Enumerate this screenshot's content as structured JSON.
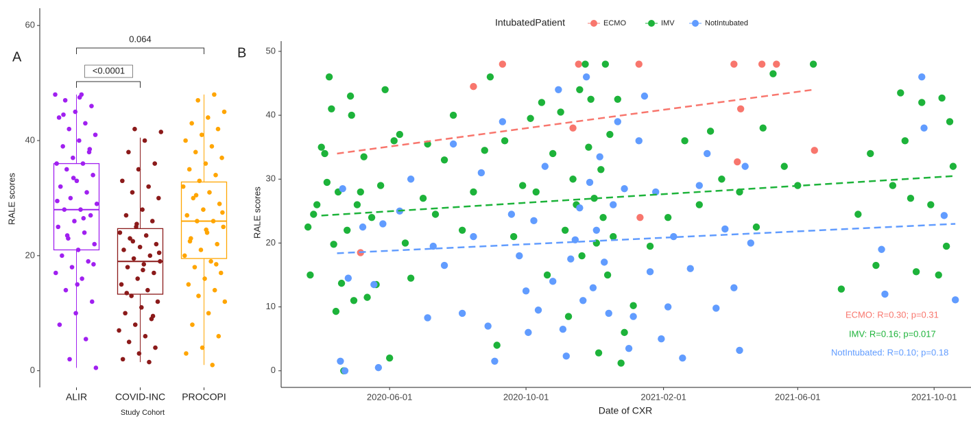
{
  "chart_data": [
    {
      "type": "box",
      "panel": "A",
      "xlabel": "Study Cohort",
      "ylabel": "RALE scores",
      "categories": [
        "ALIR",
        "COVID-INC",
        "PROCOPI"
      ],
      "colors": [
        "#a020f0",
        "#8b1a1a",
        "#ffa500"
      ],
      "boxes": [
        {
          "min": 0.5,
          "q1": 21,
          "median": 28,
          "q3": 36,
          "max": 48
        },
        {
          "min": 1.5,
          "q1": 13.3,
          "median": 19,
          "q3": 24.7,
          "max": 40.5
        },
        {
          "min": 1,
          "q1": 19.5,
          "median": 26,
          "q3": 32.8,
          "max": 48
        }
      ],
      "values": [
        [
          48,
          48,
          47,
          46,
          45,
          44,
          43,
          42,
          41,
          40,
          39,
          38,
          37,
          36,
          36,
          35,
          34,
          33,
          32,
          31,
          30,
          29,
          28,
          28,
          27,
          26,
          25,
          24,
          23,
          22,
          21,
          20,
          19,
          18,
          17,
          16,
          14,
          12,
          10,
          8,
          5.5,
          2,
          0.5,
          47.5,
          44.5,
          38.5,
          33.5,
          29.5,
          26.5,
          23.5,
          18.5,
          15
        ],
        [
          42,
          41.5,
          40,
          38,
          36,
          35,
          33,
          32,
          31,
          30,
          28,
          27,
          26,
          25,
          24,
          23.5,
          23,
          22,
          21.5,
          21,
          20,
          19.5,
          19,
          18.5,
          18,
          17,
          16,
          15,
          14,
          13,
          12,
          11,
          10,
          9,
          8,
          7,
          6,
          5,
          4,
          3,
          2,
          1.5,
          22.5,
          20.5,
          17.5,
          13.5,
          9.5,
          25.5
        ],
        [
          48,
          47,
          45,
          44,
          43,
          42,
          41,
          40,
          39,
          38,
          37,
          36,
          35,
          34,
          33,
          32,
          31,
          30,
          29,
          28,
          27,
          26,
          26,
          25,
          24,
          23,
          22,
          21,
          20,
          19,
          18,
          17,
          16,
          15,
          14,
          13,
          12,
          10,
          8,
          6,
          4,
          3,
          1,
          30.5,
          27.5,
          24.5,
          22.5,
          18.5
        ]
      ],
      "comparisons": [
        {
          "label": "<0.0001",
          "groups": [
            "ALIR",
            "COVID-INC"
          ]
        },
        {
          "label": "0.064",
          "groups": [
            "ALIR",
            "PROCOPI"
          ]
        }
      ],
      "ylim": [
        -2.9,
        63
      ],
      "yticks": [
        0,
        20,
        40,
        60
      ]
    },
    {
      "type": "scatter",
      "panel": "B",
      "xlabel": "Date of CXR",
      "ylabel": "RALE scores",
      "legend_title": "IntubatedPatient",
      "legend": "top",
      "xlim": [
        "2020-02-25",
        "2021-11-03"
      ],
      "xticks": [
        "2020-06-01",
        "2020-10-01",
        "2021-02-01",
        "2021-06-01",
        "2021-10-01"
      ],
      "ylim": [
        -2.6,
        51.6
      ],
      "yticks": [
        0,
        10,
        20,
        30,
        40,
        50
      ],
      "series": [
        {
          "name": "ECMO",
          "color": "#f8766d",
          "annotation": "ECMO: R=0.30; p=0.31",
          "x": [
            "2020-05-06",
            "2020-08-15",
            "2020-09-10",
            "2020-11-12",
            "2020-11-17",
            "2021-01-10",
            "2021-01-11",
            "2021-04-05",
            "2021-04-08",
            "2021-04-11",
            "2021-04-30",
            "2021-05-13",
            "2021-06-16"
          ],
          "values": [
            18.5,
            44.5,
            48,
            38,
            48,
            48,
            24,
            48,
            32.7,
            41,
            48,
            48,
            34.5
          ],
          "trend": {
            "x": [
              "2020-04-15",
              "2021-06-15"
            ],
            "values": [
              34,
              44
            ]
          }
        },
        {
          "name": "IMV",
          "color": "#1db33a",
          "annotation": "IMV: R=0.16; p=0.017",
          "x": [
            "2020-03-20",
            "2020-03-22",
            "2020-03-25",
            "2020-03-28",
            "2020-04-01",
            "2020-04-04",
            "2020-04-06",
            "2020-04-08",
            "2020-04-10",
            "2020-04-12",
            "2020-04-14",
            "2020-04-16",
            "2020-04-19",
            "2020-04-21",
            "2020-04-24",
            "2020-04-27",
            "2020-04-28",
            "2020-04-30",
            "2020-05-03",
            "2020-05-06",
            "2020-05-09",
            "2020-05-12",
            "2020-05-16",
            "2020-05-20",
            "2020-05-24",
            "2020-05-28",
            "2020-06-01",
            "2020-06-05",
            "2020-06-10",
            "2020-06-15",
            "2020-06-20",
            "2020-07-01",
            "2020-07-05",
            "2020-07-12",
            "2020-07-20",
            "2020-07-28",
            "2020-08-05",
            "2020-08-15",
            "2020-08-25",
            "2020-08-30",
            "2020-09-05",
            "2020-09-12",
            "2020-09-20",
            "2020-09-28",
            "2020-10-05",
            "2020-10-10",
            "2020-10-15",
            "2020-10-20",
            "2020-10-25",
            "2020-11-01",
            "2020-11-05",
            "2020-11-08",
            "2020-11-12",
            "2020-11-15",
            "2020-11-18",
            "2020-11-20",
            "2020-11-23",
            "2020-11-26",
            "2020-11-28",
            "2020-12-01",
            "2020-12-03",
            "2020-12-05",
            "2020-12-07",
            "2020-12-09",
            "2020-12-11",
            "2020-12-13",
            "2020-12-15",
            "2020-12-18",
            "2020-12-22",
            "2020-12-25",
            "2020-12-28",
            "2021-01-05",
            "2021-01-20",
            "2021-02-05",
            "2021-02-20",
            "2021-03-05",
            "2021-03-15",
            "2021-03-25",
            "2021-04-10",
            "2021-04-25",
            "2021-05-01",
            "2021-05-10",
            "2021-05-20",
            "2021-06-01",
            "2021-06-15",
            "2021-07-10",
            "2021-07-25",
            "2021-08-05",
            "2021-08-10",
            "2021-08-25",
            "2021-09-01",
            "2021-09-05",
            "2021-09-10",
            "2021-09-15",
            "2021-09-20",
            "2021-09-28",
            "2021-10-05",
            "2021-10-08",
            "2021-10-12",
            "2021-10-15",
            "2021-10-18"
          ],
          "values": [
            22.5,
            15,
            24.5,
            26,
            35,
            34,
            29.5,
            46,
            41,
            19.8,
            9.3,
            28,
            13.7,
            0,
            22,
            43,
            40,
            11,
            26,
            28,
            33.5,
            11.5,
            24,
            13.5,
            29,
            44,
            2,
            36,
            37,
            20,
            14.5,
            27,
            35.5,
            24.5,
            33,
            40,
            22,
            28,
            34.5,
            46,
            4,
            36,
            21,
            29,
            39.5,
            28,
            42,
            15,
            34,
            40.5,
            22,
            8.5,
            30,
            26,
            44,
            18,
            48,
            35,
            42.5,
            27,
            20,
            2.8,
            31.5,
            24,
            48,
            15,
            37,
            21,
            42.5,
            1.2,
            6,
            10.2,
            19.5,
            24,
            36,
            26,
            37.5,
            30,
            28,
            22.5,
            38,
            46.5,
            32,
            29,
            48,
            12.8,
            24.5,
            34,
            16.5,
            29,
            43.5,
            36,
            27,
            15.5,
            42,
            26,
            15,
            42.7,
            19.5,
            39,
            32
          ],
          "trend": {
            "x": [
              "2020-04-01",
              "2021-10-20"
            ],
            "values": [
              24.3,
              30.5
            ]
          }
        },
        {
          "name": "NotIntubated",
          "color": "#619cff",
          "annotation": "NotIntubated: R=0.10; p=0.18",
          "x": [
            "2020-04-18",
            "2020-04-22",
            "2020-04-20",
            "2020-04-25",
            "2020-05-08",
            "2020-05-18",
            "2020-05-22",
            "2020-05-26",
            "2020-06-10",
            "2020-06-20",
            "2020-07-05",
            "2020-07-10",
            "2020-07-20",
            "2020-07-28",
            "2020-08-05",
            "2020-08-15",
            "2020-08-22",
            "2020-08-28",
            "2020-09-03",
            "2020-09-10",
            "2020-09-18",
            "2020-09-25",
            "2020-10-01",
            "2020-10-03",
            "2020-10-08",
            "2020-10-12",
            "2020-10-18",
            "2020-10-25",
            "2020-10-30",
            "2020-11-03",
            "2020-11-06",
            "2020-11-10",
            "2020-11-14",
            "2020-11-18",
            "2020-11-21",
            "2020-11-24",
            "2020-11-27",
            "2020-11-30",
            "2020-12-03",
            "2020-12-06",
            "2020-12-10",
            "2020-12-14",
            "2020-12-18",
            "2020-12-22",
            "2020-12-28",
            "2021-01-01",
            "2021-01-05",
            "2021-01-10",
            "2021-01-15",
            "2021-01-20",
            "2021-01-25",
            "2021-01-30",
            "2021-02-05",
            "2021-02-10",
            "2021-02-18",
            "2021-02-25",
            "2021-03-05",
            "2021-03-12",
            "2021-03-20",
            "2021-03-28",
            "2021-04-05",
            "2021-04-10",
            "2021-04-15",
            "2021-04-20",
            "2021-08-15",
            "2021-08-18",
            "2021-09-20",
            "2021-09-22",
            "2021-10-10",
            "2021-10-20"
          ],
          "values": [
            1.5,
            0,
            28.5,
            14.5,
            22.5,
            13.5,
            0.5,
            23,
            25,
            30,
            8.3,
            19.5,
            16.5,
            35.5,
            9,
            21,
            31,
            7,
            1.5,
            39,
            24.5,
            18,
            12.5,
            6,
            23.5,
            9.5,
            32,
            14,
            44,
            6.5,
            2.3,
            17.5,
            20.5,
            25.5,
            11,
            46,
            29.5,
            13,
            22,
            33.5,
            17,
            9,
            26,
            39,
            28.5,
            3.5,
            8.5,
            36,
            43,
            15.5,
            28,
            5,
            10,
            21,
            2,
            16,
            29,
            34,
            9.8,
            22.2,
            13,
            3.2,
            32,
            20,
            19,
            12,
            46,
            38,
            24.3,
            11.1
          ],
          "trend": {
            "x": [
              "2020-04-15",
              "2021-10-20"
            ],
            "values": [
              18.4,
              23
            ]
          }
        }
      ]
    }
  ]
}
